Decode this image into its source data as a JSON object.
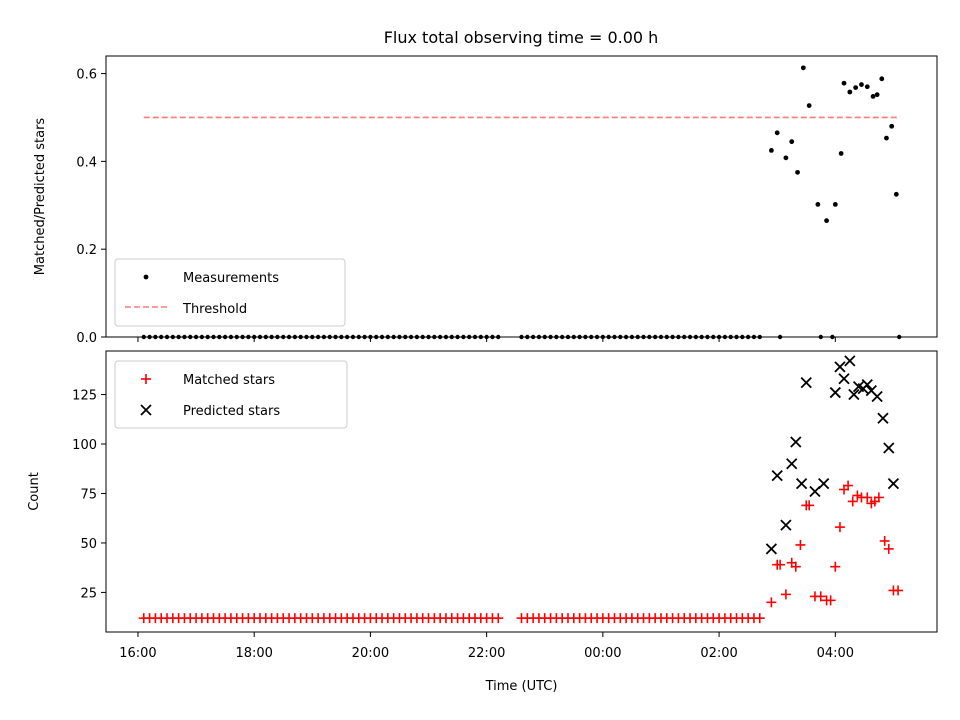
{
  "figure": {
    "title": "Flux total observing time = 0.00 h"
  },
  "chart_data": [
    {
      "type": "scatter",
      "ylabel": "Matched/Predicted stars",
      "ylim": [
        0,
        0.64
      ],
      "xlim": [
        -0.55,
        13.75
      ],
      "xunit": "hours since 16:00 UTC",
      "yticks": [
        {
          "value": 0.0,
          "label": "0.0"
        },
        {
          "value": 0.2,
          "label": "0.2"
        },
        {
          "value": 0.4,
          "label": "0.4"
        },
        {
          "value": 0.6,
          "label": "0.6"
        }
      ],
      "legend": {
        "placement": "lower-left",
        "entries": [
          "Measurements",
          "Threshold"
        ]
      },
      "threshold": {
        "name": "Threshold",
        "value": 0.5,
        "x_start": 0.1,
        "x_end": 13.1,
        "color": "#ff7a7a"
      },
      "zero_series": {
        "ranges": [
          [
            0.1,
            6.2
          ],
          [
            6.6,
            10.75
          ]
        ],
        "step": 0.1,
        "extra_x": [
          11.05,
          11.75,
          11.95,
          13.1
        ]
      },
      "series": [
        {
          "name": "Measurements",
          "color": "#000000",
          "points": [
            [
              10.9,
              0.425
            ],
            [
              11.0,
              0.465
            ],
            [
              11.15,
              0.408
            ],
            [
              11.25,
              0.445
            ],
            [
              11.35,
              0.375
            ],
            [
              11.45,
              0.613
            ],
            [
              11.55,
              0.527
            ],
            [
              11.7,
              0.302
            ],
            [
              11.85,
              0.265
            ],
            [
              12.0,
              0.302
            ],
            [
              12.1,
              0.418
            ],
            [
              12.15,
              0.578
            ],
            [
              12.25,
              0.558
            ],
            [
              12.35,
              0.568
            ],
            [
              12.45,
              0.575
            ],
            [
              12.55,
              0.57
            ],
            [
              12.65,
              0.548
            ],
            [
              12.72,
              0.552
            ],
            [
              12.8,
              0.588
            ],
            [
              12.88,
              0.453
            ],
            [
              12.97,
              0.48
            ],
            [
              13.05,
              0.325
            ]
          ]
        }
      ]
    },
    {
      "type": "scatter",
      "xlabel": "Time (UTC)",
      "ylabel": "Count",
      "ylim": [
        5,
        147
      ],
      "xlim": [
        -0.55,
        13.75
      ],
      "xunit": "hours since 16:00 UTC",
      "xticks": [
        {
          "value": 0,
          "label": "16:00"
        },
        {
          "value": 2,
          "label": "18:00"
        },
        {
          "value": 4,
          "label": "20:00"
        },
        {
          "value": 6,
          "label": "22:00"
        },
        {
          "value": 8,
          "label": "00:00"
        },
        {
          "value": 10,
          "label": "02:00"
        },
        {
          "value": 12,
          "label": "04:00"
        }
      ],
      "yticks": [
        {
          "value": 25,
          "label": "25"
        },
        {
          "value": 50,
          "label": "50"
        },
        {
          "value": 75,
          "label": "75"
        },
        {
          "value": 100,
          "label": "100"
        },
        {
          "value": 125,
          "label": "125"
        }
      ],
      "legend": {
        "placement": "upper-left",
        "entries": [
          "Matched stars",
          "Predicted stars"
        ]
      },
      "baseline_series": {
        "value": 12,
        "ranges": [
          [
            0.1,
            6.2
          ],
          [
            6.6,
            10.75
          ]
        ],
        "step": 0.1
      },
      "series": [
        {
          "name": "Matched stars",
          "marker": "plus",
          "color": "#ff0000",
          "points": [
            [
              10.9,
              20
            ],
            [
              11.0,
              39
            ],
            [
              11.05,
              39
            ],
            [
              11.15,
              24
            ],
            [
              11.25,
              40
            ],
            [
              11.32,
              38
            ],
            [
              11.4,
              49
            ],
            [
              11.5,
              69
            ],
            [
              11.55,
              69
            ],
            [
              11.65,
              23
            ],
            [
              11.75,
              23
            ],
            [
              11.85,
              21
            ],
            [
              11.92,
              21
            ],
            [
              12.0,
              38
            ],
            [
              12.08,
              58
            ],
            [
              12.15,
              77
            ],
            [
              12.22,
              79
            ],
            [
              12.3,
              71
            ],
            [
              12.38,
              74
            ],
            [
              12.45,
              73
            ],
            [
              12.55,
              73
            ],
            [
              12.62,
              70
            ],
            [
              12.68,
              71
            ],
            [
              12.75,
              73
            ],
            [
              12.85,
              51
            ],
            [
              12.92,
              47
            ],
            [
              13.0,
              26
            ],
            [
              13.08,
              26
            ]
          ]
        },
        {
          "name": "Predicted stars",
          "marker": "x",
          "color": "#000000",
          "points": [
            [
              10.9,
              47
            ],
            [
              11.0,
              84
            ],
            [
              11.15,
              59
            ],
            [
              11.25,
              90
            ],
            [
              11.32,
              101
            ],
            [
              11.42,
              80
            ],
            [
              11.5,
              131
            ],
            [
              11.65,
              76
            ],
            [
              11.8,
              80
            ],
            [
              12.0,
              126
            ],
            [
              12.08,
              139
            ],
            [
              12.15,
              133
            ],
            [
              12.25,
              142
            ],
            [
              12.32,
              125
            ],
            [
              12.4,
              129
            ],
            [
              12.48,
              128
            ],
            [
              12.55,
              130
            ],
            [
              12.62,
              127
            ],
            [
              12.72,
              124
            ],
            [
              12.82,
              113
            ],
            [
              12.92,
              98
            ],
            [
              13.0,
              80
            ]
          ]
        }
      ]
    }
  ]
}
